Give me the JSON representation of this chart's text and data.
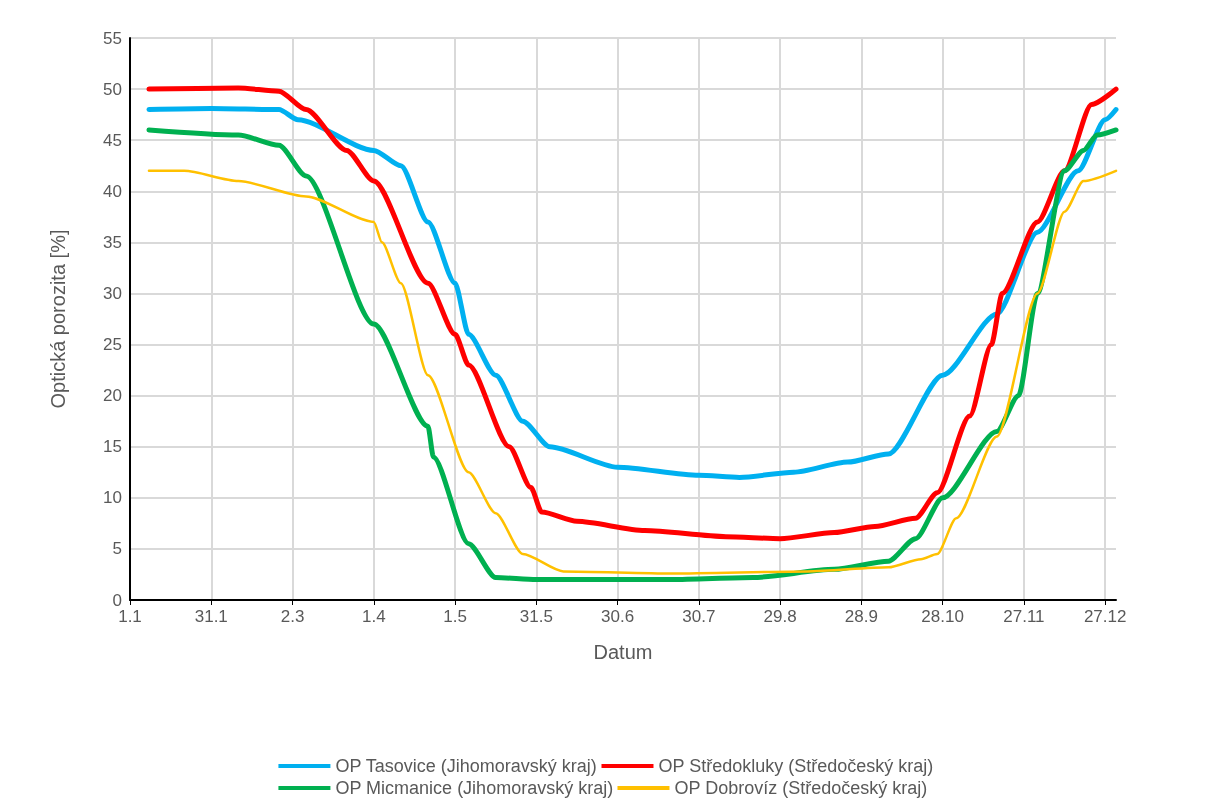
{
  "chart_data": {
    "type": "line",
    "xlabel": "Datum",
    "ylabel": "Optická porozita [%]",
    "xlim": [
      "--01-01",
      "--12-31"
    ],
    "xticks": [
      {
        "value": "--01-01",
        "label": "1.1"
      },
      {
        "value": "--01-31",
        "label": "31.1"
      },
      {
        "value": "--03-02",
        "label": "2.3"
      },
      {
        "value": "--04-01",
        "label": "1.4"
      },
      {
        "value": "--05-01",
        "label": "1.5"
      },
      {
        "value": "--05-31",
        "label": "31.5"
      },
      {
        "value": "--06-30",
        "label": "30.6"
      },
      {
        "value": "--07-30",
        "label": "30.7"
      },
      {
        "value": "--08-29",
        "label": "29.8"
      },
      {
        "value": "--09-28",
        "label": "28.9"
      },
      {
        "value": "--10-28",
        "label": "28.10"
      },
      {
        "value": "--11-27",
        "label": "27.11"
      },
      {
        "value": "--12-27",
        "label": "27.12"
      }
    ],
    "ylim": [
      0,
      55
    ],
    "yticks": [
      0,
      5,
      10,
      15,
      20,
      25,
      30,
      35,
      40,
      45,
      50,
      55
    ],
    "grid": true,
    "legend": "bottom",
    "marker": "none",
    "line_style": "solid",
    "series": [
      {
        "name": "OP Tasovice (Jihomoravský kraj)",
        "color": "#00b0f0",
        "x": [
          "--01-08",
          "--01-31",
          "--02-25",
          "--03-04",
          "--04-01",
          "--04-11",
          "--04-21",
          "--05-01",
          "--05-06",
          "--05-16",
          "--05-26",
          "--06-05",
          "--06-30",
          "--07-30",
          "--08-14",
          "--09-03",
          "--09-23",
          "--10-08",
          "--10-28",
          "--11-17",
          "--12-02",
          "--12-17",
          "--12-27",
          "--12-31"
        ],
        "values": [
          48,
          48.1,
          48,
          47,
          44,
          42.5,
          37,
          31,
          26,
          22,
          17.5,
          15,
          13,
          12.2,
          12,
          12.5,
          13.5,
          14.3,
          22,
          28,
          36,
          42,
          47,
          48
        ]
      },
      {
        "name": "OP Středokluky (Středočeský kraj)",
        "color": "#ff0000",
        "x": [
          "--01-08",
          "--02-10",
          "--02-25",
          "--03-07",
          "--03-22",
          "--04-01",
          "--04-21",
          "--05-01",
          "--05-06",
          "--05-21",
          "--05-29",
          "--06-02",
          "--06-15",
          "--07-10",
          "--08-09",
          "--08-29",
          "--09-18",
          "--10-03",
          "--10-18",
          "--10-26",
          "--11-07",
          "--11-15",
          "--11-19",
          "--12-02",
          "--12-12",
          "--12-22",
          "--12-31"
        ],
        "values": [
          50,
          50.1,
          49.8,
          48,
          44,
          41,
          31,
          26,
          23,
          15,
          11,
          8.6,
          7.7,
          6.8,
          6.2,
          6,
          6.6,
          7.2,
          8,
          10.5,
          18,
          25,
          30,
          37,
          42,
          48.5,
          50
        ]
      },
      {
        "name": "OP Micmanice (Jihomoravský kraj)",
        "color": "#00b050",
        "x": [
          "--01-08",
          "--02-10",
          "--02-25",
          "--03-07",
          "--04-01",
          "--04-21",
          "--04-23",
          "--05-06",
          "--05-16",
          "--05-31",
          "--07-20",
          "--08-19",
          "--09-18",
          "--10-08",
          "--10-18",
          "--10-28",
          "--11-17",
          "--11-25",
          "--12-02",
          "--12-12",
          "--12-19",
          "--12-24",
          "--12-31"
        ],
        "values": [
          46,
          45.5,
          44.5,
          41.5,
          27,
          17,
          14,
          5.5,
          2.2,
          2,
          2,
          2.2,
          3,
          3.8,
          6,
          10,
          16.5,
          20,
          30,
          42,
          44,
          45.5,
          46
        ]
      },
      {
        "name": "OP Dobrovíz (Středočeský kraj)",
        "color": "#ffc000",
        "x": [
          "--01-08",
          "--01-21",
          "--02-10",
          "--03-07",
          "--04-01",
          "--04-04",
          "--04-11",
          "--04-21",
          "--05-06",
          "--05-16",
          "--05-26",
          "--06-10",
          "--07-20",
          "--09-08",
          "--10-08",
          "--10-20",
          "--10-26",
          "--11-02",
          "--11-17",
          "--12-02",
          "--12-12",
          "--12-19",
          "--12-31"
        ],
        "values": [
          42,
          42,
          41,
          39.5,
          37,
          35,
          31,
          22,
          12.5,
          8.5,
          4.5,
          2.8,
          2.6,
          2.8,
          3.2,
          4,
          4.5,
          8,
          16,
          30,
          38,
          41,
          42
        ]
      }
    ]
  }
}
